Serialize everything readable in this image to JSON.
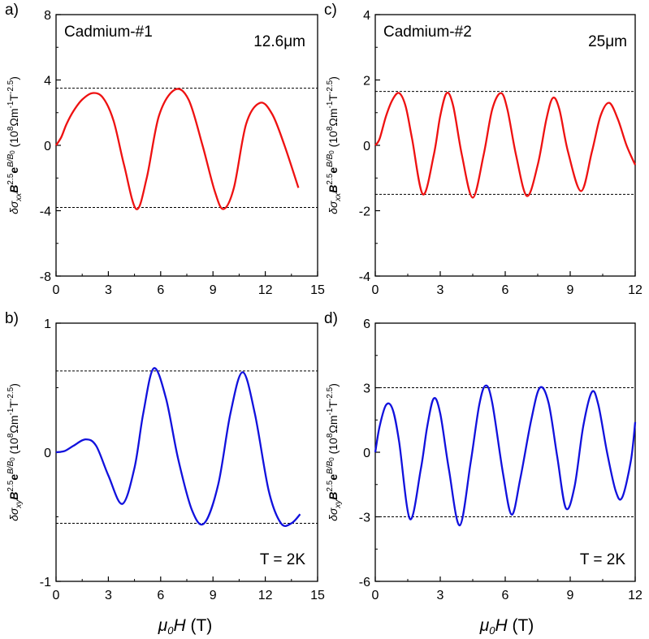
{
  "chart_data": [
    {
      "id": "a",
      "type": "line",
      "panel_label": "a)",
      "sample_label": "Cadmium-#1",
      "thickness_label": "12.6μm",
      "ylabel": "δσxxB2.5eB/B0 (108Ωm-1T-2.5)",
      "xlim": [
        0,
        15
      ],
      "ylim": [
        -8,
        8
      ],
      "xticks": [
        "0",
        "3",
        "6",
        "9",
        "12",
        "15"
      ],
      "yticks": [
        "-8",
        "-4",
        "0",
        "4",
        "8"
      ],
      "color": "#ee1111",
      "reference_lines": [
        3.5,
        -3.8
      ],
      "series": [
        {
          "name": "δσxx",
          "x": [
            0,
            0.3,
            0.6,
            1.0,
            1.5,
            2.1,
            2.7,
            3.3,
            3.9,
            4.6,
            5.2,
            5.9,
            6.8,
            7.6,
            8.4,
            9.1,
            9.6,
            10.2,
            10.9,
            11.7,
            12.4,
            13.1,
            13.9
          ],
          "y": [
            0,
            0.5,
            1.3,
            2.1,
            2.8,
            3.2,
            2.9,
            1.5,
            -1.2,
            -3.9,
            -2.0,
            1.8,
            3.4,
            2.8,
            0.0,
            -2.8,
            -3.9,
            -2.6,
            1.3,
            2.6,
            1.9,
            0.0,
            -2.6
          ]
        }
      ]
    },
    {
      "id": "b",
      "type": "line",
      "panel_label": "b)",
      "annotation": "T = 2K",
      "ylabel": "δσxyB2.5eB/B0 (108Ωm-1T-2.5)",
      "xlim": [
        0,
        15
      ],
      "ylim": [
        -1,
        1
      ],
      "xticks": [
        "0",
        "3",
        "6",
        "9",
        "12",
        "15"
      ],
      "yticks": [
        "-1",
        "0",
        "1"
      ],
      "color": "#1111dd",
      "reference_lines": [
        0.63,
        -0.55
      ],
      "series": [
        {
          "name": "δσxy",
          "x": [
            0,
            0.5,
            1.0,
            1.7,
            2.3,
            3.0,
            3.8,
            4.5,
            5.0,
            5.6,
            6.3,
            7.0,
            7.8,
            8.5,
            9.3,
            10.0,
            10.7,
            11.4,
            12.2,
            12.9,
            13.5,
            14.0
          ],
          "y": [
            0,
            0.01,
            0.05,
            0.1,
            0.05,
            -0.18,
            -0.4,
            -0.12,
            0.3,
            0.65,
            0.42,
            -0.05,
            -0.45,
            -0.55,
            -0.25,
            0.3,
            0.62,
            0.3,
            -0.3,
            -0.55,
            -0.55,
            -0.48
          ]
        }
      ]
    },
    {
      "id": "c",
      "type": "line",
      "panel_label": "c)",
      "sample_label": "Cadmium-#2",
      "thickness_label": "25μm",
      "ylabel": "δσxxB2.5eB/B0 (108Ωm-1T-2.5)",
      "xlim": [
        0,
        12
      ],
      "ylim": [
        -4,
        4
      ],
      "xticks": [
        "0",
        "3",
        "6",
        "9",
        "12"
      ],
      "yticks": [
        "-4",
        "-2",
        "0",
        "2",
        "4"
      ],
      "color": "#ee1111",
      "reference_lines": [
        1.65,
        -1.5
      ],
      "series": [
        {
          "name": "δσxx",
          "x": [
            0,
            0.2,
            0.5,
            0.8,
            1.1,
            1.4,
            1.7,
            2.2,
            2.7,
            3.0,
            3.3,
            3.6,
            4.0,
            4.5,
            5.0,
            5.4,
            5.8,
            6.1,
            6.5,
            7.0,
            7.5,
            7.9,
            8.2,
            8.5,
            8.9,
            9.5,
            10.0,
            10.4,
            10.8,
            11.2,
            11.6,
            12.0
          ],
          "y": [
            0,
            0.2,
            0.9,
            1.4,
            1.6,
            1.2,
            0.2,
            -1.5,
            -0.3,
            0.9,
            1.6,
            1.2,
            -0.3,
            -1.6,
            -0.3,
            1.1,
            1.6,
            1.1,
            -0.3,
            -1.55,
            -0.6,
            0.8,
            1.45,
            1.1,
            -0.2,
            -1.4,
            -0.2,
            0.9,
            1.3,
            0.8,
            0.0,
            -0.6
          ]
        }
      ]
    },
    {
      "id": "d",
      "type": "line",
      "panel_label": "d)",
      "annotation": "T = 2K",
      "ylabel": "δσxyB2.5eB/B0 (108Ωm-1T-2.5)",
      "xlim": [
        0,
        12
      ],
      "ylim": [
        -6,
        6
      ],
      "xticks": [
        "0",
        "3",
        "6",
        "9",
        "12"
      ],
      "yticks": [
        "-6",
        "-3",
        "0",
        "3",
        "6"
      ],
      "color": "#1111dd",
      "reference_lines": [
        3.0,
        -3.0
      ],
      "series": [
        {
          "name": "δσxy",
          "x": [
            0,
            0.2,
            0.5,
            0.8,
            1.1,
            1.6,
            2.1,
            2.4,
            2.7,
            3.0,
            3.4,
            3.9,
            4.4,
            4.8,
            5.1,
            5.4,
            5.9,
            6.3,
            6.7,
            7.2,
            7.6,
            8.0,
            8.4,
            8.8,
            9.2,
            9.6,
            10.0,
            10.3,
            10.7,
            11.1,
            11.4,
            11.8,
            12.0
          ],
          "y": [
            0,
            1.2,
            2.2,
            2.0,
            0.5,
            -3.1,
            -0.8,
            1.2,
            2.5,
            1.8,
            -0.8,
            -3.4,
            -0.5,
            2.2,
            3.1,
            2.3,
            -1.0,
            -2.9,
            -1.2,
            1.5,
            3.0,
            2.3,
            -0.2,
            -2.6,
            -1.6,
            1.2,
            2.8,
            2.2,
            0.0,
            -1.8,
            -2.1,
            -0.4,
            1.4
          ]
        }
      ]
    }
  ],
  "shared": {
    "xlabel_mu": "μ",
    "xlabel_sub": "0",
    "xlabel_H": "H",
    "xlabel_unit": " (T)"
  }
}
